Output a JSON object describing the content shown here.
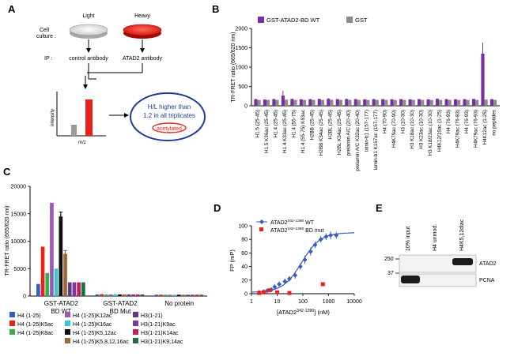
{
  "panelA": {
    "label": "A",
    "cell_culture_label": "Cell\nculture :",
    "light_label": "Light",
    "heavy_label": "Heavy",
    "ip_label": "IP :",
    "control_ab": "control antibody",
    "atad2_ab": "ATAD2 antibody",
    "ylabel": "intensity",
    "xlabel": "m/z",
    "oval_line1": "H/L higher than",
    "oval_line2": "1.2 in all triplicates",
    "acetylated": "acetylated",
    "light_bar_color": "#9a9a9a",
    "heavy_bar_color": "#e8211d",
    "oval_color": "#1f3c99"
  },
  "chart_data": [
    {
      "panel": "B",
      "type": "bar",
      "ylabel": "TR-FRET ratio (665/620 nm)",
      "ylim": [
        0,
        2000
      ],
      "yticks": [
        0,
        500,
        1000,
        1500,
        2000
      ],
      "legend": [
        {
          "name": "GST-ATAD2-BD WT",
          "color": "#7b2f9e"
        },
        {
          "name": "GST",
          "color": "#8c8c8c"
        }
      ],
      "categories": [
        "H1.5 (25-45)",
        "H1.5 K36ac (25-45)",
        "H1.4 (25-45)",
        "H1.4 K33ac (25-45)",
        "H1.4 (55-75)",
        "H1.4 (55-75) K63ac",
        "H2BB (25-45)",
        "H2BB K34ac (25-45)",
        "H2BL (25-45)",
        "H2BL K34ac (25-45)",
        "prelamin A/C (20-40)",
        "prelamin A/C K32ac (20-40)",
        "lamin-b1 (157-177)",
        "lamin-b1 K167ac (157-177)",
        "H4 (70-90)",
        "H4K79ac (70-90)",
        "H3 (10-30)",
        "H3 K18ac (10-30)",
        "H3 K23ac (10-30)",
        "H3 K18/23ac (10-30)",
        "H4K12/16ac (1-25)",
        "H4 (76-93)",
        "H4K79ac (76-83)",
        "H4 (76-93)",
        "H4K79ac (76-93)",
        "H4K12ac (1-25)",
        "no peptides"
      ],
      "series": [
        {
          "name": "GST-ATAD2-BD WT",
          "values": [
            170,
            160,
            170,
            265,
            175,
            165,
            170,
            175,
            180,
            170,
            175,
            170,
            165,
            170,
            170,
            165,
            170,
            165,
            170,
            165,
            180,
            170,
            165,
            170,
            175,
            1350,
            170
          ],
          "errors": [
            15,
            10,
            15,
            120,
            10,
            10,
            10,
            10,
            15,
            10,
            10,
            10,
            10,
            10,
            10,
            10,
            10,
            10,
            10,
            10,
            10,
            10,
            10,
            10,
            10,
            280,
            10
          ]
        },
        {
          "name": "GST",
          "values": [
            150,
            150,
            150,
            160,
            150,
            150,
            150,
            150,
            150,
            150,
            150,
            150,
            150,
            150,
            150,
            150,
            150,
            150,
            150,
            150,
            150,
            150,
            150,
            150,
            150,
            160,
            150
          ],
          "errors": [
            8,
            8,
            8,
            8,
            8,
            8,
            8,
            8,
            8,
            8,
            8,
            8,
            8,
            8,
            8,
            8,
            8,
            8,
            8,
            8,
            8,
            8,
            8,
            8,
            8,
            8,
            8
          ]
        }
      ]
    },
    {
      "panel": "C",
      "type": "bar",
      "ylabel": "TR-FRET ratio (665/620 nm)",
      "ylim": [
        0,
        20000
      ],
      "yticks": [
        0,
        5000,
        10000,
        15000,
        20000
      ],
      "categories": [
        "GST-ATAD2\nBD WT",
        "GST-ATAD2\nBD Mut",
        "No protein"
      ],
      "series": [
        {
          "name": "H4 (1-25)",
          "color": "#3a5cc0",
          "values": [
            2200,
            300,
            250
          ],
          "errors": [
            0,
            0,
            0
          ]
        },
        {
          "name": "H4 (1-25)K5ac",
          "color": "#e8211d",
          "values": [
            9000,
            350,
            250
          ],
          "errors": [
            0,
            0,
            0
          ]
        },
        {
          "name": "H4 (1-25)K8ac",
          "color": "#2fb34a",
          "values": [
            4200,
            300,
            250
          ],
          "errors": [
            0,
            0,
            0
          ]
        },
        {
          "name": "H4 (1-25)K12ac",
          "color": "#9b59b6",
          "values": [
            17000,
            300,
            250
          ],
          "errors": [
            0,
            0,
            0
          ]
        },
        {
          "name": "H4 (1-25)K16ac",
          "color": "#3cc2dd",
          "values": [
            5000,
            350,
            250
          ],
          "errors": [
            0,
            0,
            0
          ]
        },
        {
          "name": "H4 (1-25)K5,12ac",
          "color": "#111111",
          "values": [
            14500,
            300,
            250
          ],
          "errors": [
            800,
            0,
            0
          ]
        },
        {
          "name": "H4 (1-25)K5,8,12,16ac",
          "color": "#9c6a3a",
          "values": [
            7700,
            300,
            250
          ],
          "errors": [
            600,
            0,
            0
          ]
        },
        {
          "name": "H3(1-21)",
          "color": "#5e3a87",
          "values": [
            2500,
            300,
            250
          ],
          "errors": [
            0,
            0,
            0
          ]
        },
        {
          "name": "H3(1-21)K9ac",
          "color": "#7a3a95",
          "values": [
            2500,
            300,
            250
          ],
          "errors": [
            0,
            0,
            0
          ]
        },
        {
          "name": "H3(1-21)K14ac",
          "color": "#c0205a",
          "values": [
            2500,
            300,
            250
          ],
          "errors": [
            0,
            0,
            0
          ]
        },
        {
          "name": "H3(1-21)K9,14ac",
          "color": "#236b3a",
          "values": [
            2500,
            300,
            250
          ],
          "errors": [
            0,
            0,
            0
          ]
        }
      ]
    },
    {
      "panel": "D",
      "type": "scatter",
      "ylabel": "FP (mP)",
      "xlabel": "[ATAD2",
      "xlabel_sup": "342-1390",
      "xlabel_end": "] (nM)",
      "xscale": "log",
      "xlim": [
        1,
        10000
      ],
      "ylim": [
        0,
        100
      ],
      "xticks": [
        1,
        10,
        100,
        1000,
        10000
      ],
      "yticks": [
        0,
        20,
        40,
        60,
        80,
        100
      ],
      "series": [
        {
          "name": "ATAD2",
          "sup": "342-1390",
          "suffix": " WT",
          "color": "#3a5cc0",
          "marker": "diamond",
          "x": [
            2,
            3,
            4,
            6,
            8,
            12,
            20,
            30,
            50,
            80,
            120,
            200,
            300,
            500,
            800,
            1200,
            2000
          ],
          "y": [
            2,
            3,
            4,
            6,
            10,
            14,
            18,
            22,
            27,
            40,
            50,
            62,
            72,
            80,
            84,
            86,
            86
          ],
          "errors": [
            2,
            3,
            3,
            3,
            4,
            4,
            4,
            4,
            5,
            5,
            6,
            6,
            5,
            5,
            5,
            6,
            5
          ]
        },
        {
          "name": "ATAD2",
          "sup": "342-1390",
          "suffix": " BD mut",
          "color": "#e8211d",
          "marker": "square",
          "x": [
            2,
            3,
            5,
            10,
            30,
            600
          ],
          "y": [
            1,
            2,
            5,
            2,
            1,
            14
          ]
        }
      ]
    }
  ],
  "panelE": {
    "label": "E",
    "lanes": [
      "10% input",
      "H4 unmod.",
      "H4K5,12diac"
    ],
    "marker_250": "250",
    "marker_37": "37",
    "band_atad2": "ATAD2",
    "band_pcna": "PCNA"
  },
  "labels": {
    "B": "B",
    "C": "C",
    "D": "D"
  }
}
